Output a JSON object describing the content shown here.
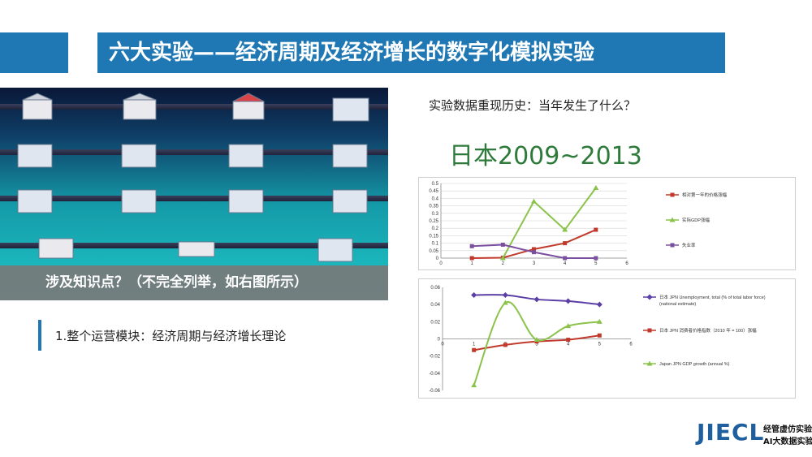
{
  "title": "六大实验——经济周期及经济增长的数字化模拟实验",
  "left_panel": {
    "caption": "涉及知识点？（不完全列举，如右图所示）",
    "knowledge_point": "1.整个运营模块：经济周期与经济增长理论"
  },
  "right_panel": {
    "question": "实验数据重现历史：当年发生了什么？",
    "chart_title": "日本2009~2013"
  },
  "chart_data": [
    {
      "type": "line",
      "x": [
        1,
        2,
        3,
        4,
        5
      ],
      "xlim": [
        0,
        6
      ],
      "ylim": [
        0,
        0.5
      ],
      "yticks": [
        "0",
        "0.05",
        "0.1",
        "0.15",
        "0.2",
        "0.25",
        "0.3",
        "0.35",
        "0.4",
        "0.45",
        "0.5"
      ],
      "xticks": [
        "0",
        "1",
        "2",
        "3",
        "4",
        "5",
        "6"
      ],
      "grid": true,
      "legend": "right",
      "series": [
        {
          "name": "相对第一年的价格涨幅",
          "color": "#c0392b",
          "marker": "square",
          "values": [
            0.0,
            0.003,
            0.06,
            0.1,
            0.19
          ]
        },
        {
          "name": "实际GDP涨幅",
          "color": "#8bc34a",
          "marker": "triangle",
          "values": [
            null,
            0.0,
            0.38,
            0.19,
            0.47
          ]
        },
        {
          "name": "失业率",
          "color": "#7b4fa0",
          "marker": "square",
          "values": [
            0.08,
            0.09,
            0.04,
            0.0,
            0.0
          ]
        }
      ]
    },
    {
      "type": "line",
      "x": [
        1,
        2,
        3,
        4,
        5
      ],
      "xlim": [
        0,
        6
      ],
      "ylim": [
        -0.06,
        0.06
      ],
      "yticks": [
        "-0.06",
        "-0.04",
        "-0.02",
        "0",
        "0.02",
        "0.04",
        "0.06"
      ],
      "xticks": [
        "0",
        "1",
        "2",
        "3",
        "4",
        "5",
        "6"
      ],
      "grid": false,
      "legend": "right",
      "series": [
        {
          "name": "日本 JPN Unemployment, total (% of total labor force)",
          "name2": "(national estimate)",
          "color": "#5b3fa6",
          "marker": "diamond",
          "values": [
            0.051,
            0.051,
            0.046,
            0.044,
            0.04
          ]
        },
        {
          "name": "日本 JPN 消费者价格指数（2010 年 = 100）涨幅",
          "color": "#c0392b",
          "marker": "square",
          "values": [
            -0.013,
            -0.007,
            -0.003,
            -0.001,
            0.004
          ]
        },
        {
          "name": "Japan JPN GDP growth (annual %)",
          "color": "#8bc34a",
          "marker": "triangle",
          "values": [
            -0.054,
            0.042,
            -0.001,
            0.015,
            0.02
          ]
        }
      ]
    }
  ],
  "logo": {
    "mark": "JIECL",
    "line1": "经管虚仿实验",
    "line2": "AI大数据实验"
  },
  "colors": {
    "accent": "#1f78b4",
    "caption_bg": "#787878"
  }
}
